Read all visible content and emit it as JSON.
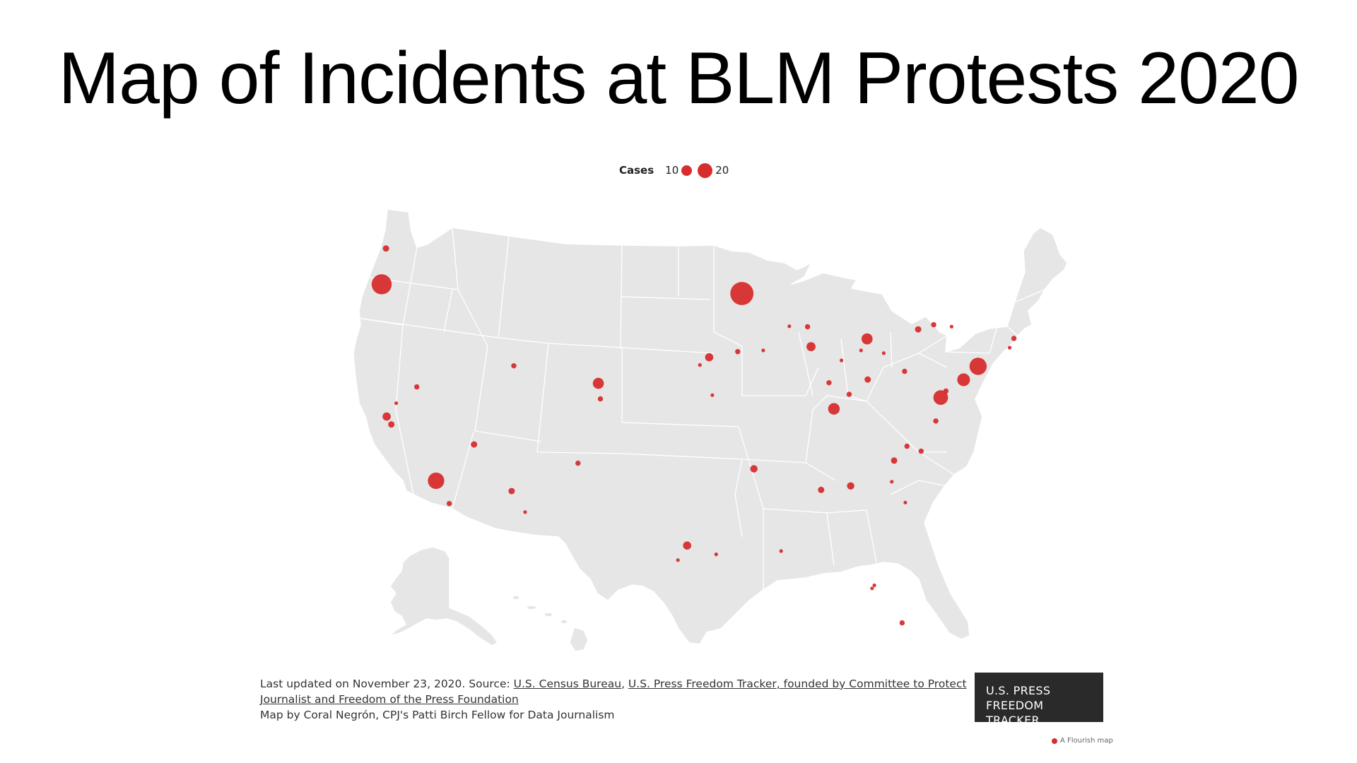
{
  "title": "Map of Incidents at BLM Protests 2020",
  "legend": {
    "label": "Cases",
    "small_value": "10",
    "large_value": "20"
  },
  "colors": {
    "land": "#e6e6e6",
    "border": "#ffffff",
    "marker": "#d62d2d",
    "badge_bg": "#2a2a2a"
  },
  "footer": {
    "line1_prefix": "Last updated on November 23, 2020. Source: ",
    "link_census": "U.S. Census Bureau",
    "separator": ", ",
    "link_tracker": "U.S. Press Freedom Tracker, founded by Committee to Protect Journalist and Freedom of the Press Foundation",
    "line3": "Map by Coral Negrón, CPJ's Patti Birch Fellow for Data Journalism"
  },
  "badge": {
    "line1": "U.S. PRESS",
    "line2": "FREEDOM TRACKER"
  },
  "flourish_credit": "A Flourish map",
  "chart_data": {
    "type": "scatter",
    "title": "Map of Incidents at BLM Protests 2020",
    "size_legend": [
      10,
      20
    ],
    "points": [
      {
        "lon": -122.33,
        "lat": 47.61,
        "cases": 3
      },
      {
        "lon": -122.68,
        "lat": 45.52,
        "cases": 30
      },
      {
        "lon": -93.27,
        "lat": 44.98,
        "cases": 40
      },
      {
        "lon": -118.24,
        "lat": 34.05,
        "cases": 20
      },
      {
        "lon": -122.27,
        "lat": 37.8,
        "cases": 5
      },
      {
        "lon": -121.89,
        "lat": 37.34,
        "cases": 3
      },
      {
        "lon": -121.49,
        "lat": 38.58,
        "cases": 1
      },
      {
        "lon": -119.81,
        "lat": 39.53,
        "cases": 2
      },
      {
        "lon": -117.16,
        "lat": 32.72,
        "cases": 2
      },
      {
        "lon": -115.14,
        "lat": 36.17,
        "cases": 3
      },
      {
        "lon": -112.07,
        "lat": 33.45,
        "cases": 3
      },
      {
        "lon": -110.97,
        "lat": 32.22,
        "cases": 1
      },
      {
        "lon": -111.89,
        "lat": 40.76,
        "cases": 2
      },
      {
        "lon": -104.99,
        "lat": 39.74,
        "cases": 9
      },
      {
        "lon": -104.82,
        "lat": 38.83,
        "cases": 2
      },
      {
        "lon": -106.65,
        "lat": 35.08,
        "cases": 2
      },
      {
        "lon": -96.7,
        "lat": 40.81,
        "cases": 1
      },
      {
        "lon": -95.94,
        "lat": 41.26,
        "cases": 5
      },
      {
        "lon": -93.61,
        "lat": 41.59,
        "cases": 2
      },
      {
        "lon": -91.53,
        "lat": 41.66,
        "cases": 1
      },
      {
        "lon": -95.68,
        "lat": 39.05,
        "cases": 1
      },
      {
        "lon": -97.74,
        "lat": 30.27,
        "cases": 5
      },
      {
        "lon": -98.49,
        "lat": 29.42,
        "cases": 1
      },
      {
        "lon": -95.37,
        "lat": 29.76,
        "cases": 1
      },
      {
        "lon": -92.29,
        "lat": 34.75,
        "cases": 4
      },
      {
        "lon": -90.07,
        "lat": 29.95,
        "cases": 1
      },
      {
        "lon": -89.4,
        "lat": 43.07,
        "cases": 1
      },
      {
        "lon": -87.91,
        "lat": 43.04,
        "cases": 2
      },
      {
        "lon": -87.63,
        "lat": 41.88,
        "cases": 6
      },
      {
        "lon": -86.16,
        "lat": 39.77,
        "cases": 2
      },
      {
        "lon": -85.76,
        "lat": 38.25,
        "cases": 10
      },
      {
        "lon": -84.51,
        "lat": 39.1,
        "cases": 2
      },
      {
        "lon": -83.0,
        "lat": 39.96,
        "cases": 3
      },
      {
        "lon": -83.05,
        "lat": 42.33,
        "cases": 9
      },
      {
        "lon": -83.54,
        "lat": 41.66,
        "cases": 1
      },
      {
        "lon": -85.14,
        "lat": 41.08,
        "cases": 1
      },
      {
        "lon": -81.69,
        "lat": 41.5,
        "cases": 1
      },
      {
        "lon": -79.99,
        "lat": 40.44,
        "cases": 2
      },
      {
        "lon": -78.88,
        "lat": 42.89,
        "cases": 3
      },
      {
        "lon": -77.61,
        "lat": 43.16,
        "cases": 2
      },
      {
        "lon": -76.15,
        "lat": 43.05,
        "cases": 1
      },
      {
        "lon": -73.99,
        "lat": 40.73,
        "cases": 22
      },
      {
        "lon": -75.17,
        "lat": 39.95,
        "cases": 12
      },
      {
        "lon": -77.04,
        "lat": 38.91,
        "cases": 16
      },
      {
        "lon": -76.61,
        "lat": 39.29,
        "cases": 2
      },
      {
        "lon": -77.44,
        "lat": 37.54,
        "cases": 2
      },
      {
        "lon": -71.06,
        "lat": 42.36,
        "cases": 2
      },
      {
        "lon": -71.41,
        "lat": 41.82,
        "cases": 1
      },
      {
        "lon": -80.84,
        "lat": 35.23,
        "cases": 3
      },
      {
        "lon": -79.79,
        "lat": 36.07,
        "cases": 2
      },
      {
        "lon": -78.64,
        "lat": 35.78,
        "cases": 2
      },
      {
        "lon": -81.03,
        "lat": 34.0,
        "cases": 1
      },
      {
        "lon": -79.93,
        "lat": 32.78,
        "cases": 1
      },
      {
        "lon": -84.39,
        "lat": 33.75,
        "cases": 4
      },
      {
        "lon": -86.8,
        "lat": 33.52,
        "cases": 3
      },
      {
        "lon": -82.46,
        "lat": 27.95,
        "cases": 1
      },
      {
        "lon": -82.64,
        "lat": 27.77,
        "cases": 1
      },
      {
        "lon": -80.19,
        "lat": 25.76,
        "cases": 2
      }
    ]
  }
}
